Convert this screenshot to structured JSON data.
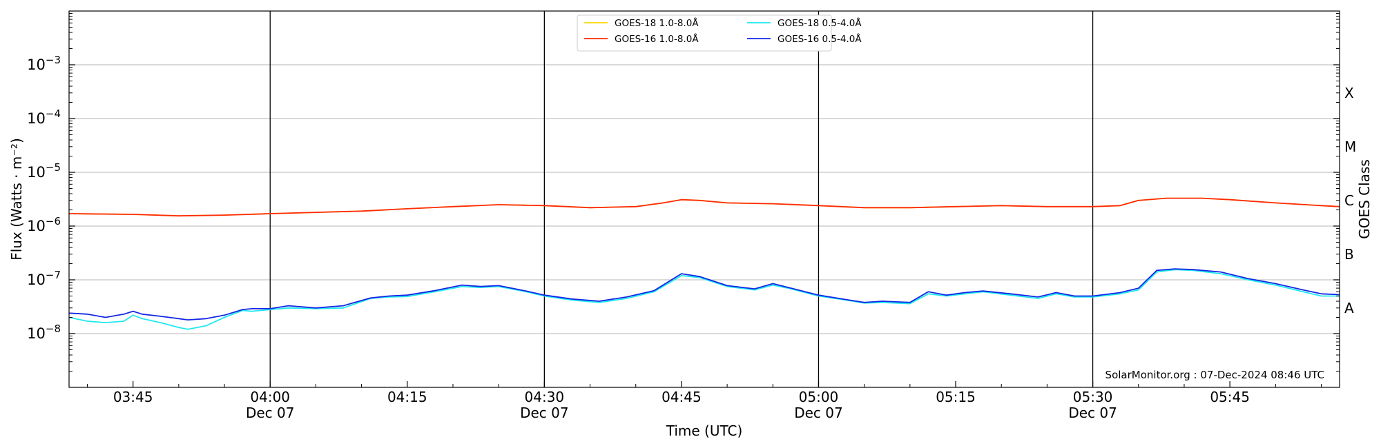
{
  "chart_data": {
    "type": "line",
    "xlabel": "Time (UTC)",
    "ylabel": "Flux (Watts · m⁻²)",
    "ylabel_right": "GOES Class",
    "ylim": [
      1e-09,
      0.01
    ],
    "yscale": "log",
    "xlim": [
      "03:38",
      "05:57"
    ],
    "grid": "horizontal",
    "legend_position": "top-center",
    "credit": "SolarMonitor.org : 07-Dec-2024 08:46 UTC",
    "y_ticks": [
      {
        "value": 1e-08,
        "base": "10",
        "exp": "−8"
      },
      {
        "value": 1e-07,
        "base": "10",
        "exp": "−7"
      },
      {
        "value": 1e-06,
        "base": "10",
        "exp": "−6"
      },
      {
        "value": 1e-05,
        "base": "10",
        "exp": "−5"
      },
      {
        "value": 0.0001,
        "base": "10",
        "exp": "−4"
      },
      {
        "value": 0.001,
        "base": "10",
        "exp": "−3"
      }
    ],
    "x_ticks": [
      {
        "time": "03:45",
        "label": "03:45",
        "sub": ""
      },
      {
        "time": "04:00",
        "label": "04:00",
        "sub": "Dec 07"
      },
      {
        "time": "04:15",
        "label": "04:15",
        "sub": ""
      },
      {
        "time": "04:30",
        "label": "04:30",
        "sub": "Dec 07"
      },
      {
        "time": "04:45",
        "label": "04:45",
        "sub": ""
      },
      {
        "time": "05:00",
        "label": "05:00",
        "sub": "Dec 07"
      },
      {
        "time": "05:15",
        "label": "05:15",
        "sub": ""
      },
      {
        "time": "05:30",
        "label": "05:30",
        "sub": "Dec 07"
      },
      {
        "time": "05:45",
        "label": "05:45",
        "sub": ""
      }
    ],
    "vlines": [
      "04:00",
      "04:30",
      "05:00",
      "05:30"
    ],
    "classes": [
      {
        "label": "A",
        "value": 3e-08
      },
      {
        "label": "B",
        "value": 3e-07
      },
      {
        "label": "C",
        "value": 3e-06
      },
      {
        "label": "M",
        "value": 3e-05
      },
      {
        "label": "X",
        "value": 0.0003
      }
    ],
    "series": [
      {
        "name": "GOES-18 1.0-8.0Å",
        "color": "#ffd700",
        "x": [
          "03:38",
          "03:45",
          "03:50",
          "03:55",
          "04:00",
          "04:05",
          "04:10",
          "04:15",
          "04:20",
          "04:25",
          "04:30",
          "04:35",
          "04:40",
          "04:43",
          "04:45",
          "04:47",
          "04:50",
          "04:55",
          "05:00",
          "05:05",
          "05:10",
          "05:15",
          "05:20",
          "05:25",
          "05:30",
          "05:33",
          "05:35",
          "05:38",
          "05:42",
          "05:45",
          "05:50",
          "05:55",
          "05:57"
        ],
        "values": [
          1.7e-06,
          1.65e-06,
          1.55e-06,
          1.6e-06,
          1.7e-06,
          1.8e-06,
          1.9e-06,
          2.1e-06,
          2.3e-06,
          2.5e-06,
          2.4e-06,
          2.2e-06,
          2.3e-06,
          2.7e-06,
          3.1e-06,
          3e-06,
          2.7e-06,
          2.6e-06,
          2.4e-06,
          2.2e-06,
          2.2e-06,
          2.3e-06,
          2.4e-06,
          2.3e-06,
          2.3e-06,
          2.4e-06,
          3e-06,
          3.3e-06,
          3.3e-06,
          3.1e-06,
          2.7e-06,
          2.4e-06,
          2.3e-06
        ]
      },
      {
        "name": "GOES-16 1.0-8.0Å",
        "color": "#ff2a0a",
        "x": [
          "03:38",
          "03:45",
          "03:50",
          "03:55",
          "04:00",
          "04:05",
          "04:10",
          "04:15",
          "04:20",
          "04:25",
          "04:30",
          "04:35",
          "04:40",
          "04:43",
          "04:45",
          "04:47",
          "04:50",
          "04:55",
          "05:00",
          "05:05",
          "05:10",
          "05:15",
          "05:20",
          "05:25",
          "05:30",
          "05:33",
          "05:35",
          "05:38",
          "05:42",
          "05:45",
          "05:50",
          "05:55",
          "05:57"
        ],
        "values": [
          1.7e-06,
          1.65e-06,
          1.55e-06,
          1.6e-06,
          1.7e-06,
          1.8e-06,
          1.9e-06,
          2.1e-06,
          2.3e-06,
          2.5e-06,
          2.4e-06,
          2.2e-06,
          2.3e-06,
          2.7e-06,
          3.1e-06,
          3e-06,
          2.7e-06,
          2.6e-06,
          2.4e-06,
          2.2e-06,
          2.2e-06,
          2.3e-06,
          2.4e-06,
          2.3e-06,
          2.3e-06,
          2.4e-06,
          3e-06,
          3.3e-06,
          3.3e-06,
          3.1e-06,
          2.7e-06,
          2.4e-06,
          2.3e-06
        ]
      },
      {
        "name": "GOES-18 0.5-4.0Å",
        "color": "#1ee8ee",
        "x": [
          "03:38",
          "03:40",
          "03:42",
          "03:44",
          "03:45",
          "03:46",
          "03:48",
          "03:50",
          "03:51",
          "03:53",
          "03:55",
          "03:57",
          "03:58",
          "04:00",
          "04:02",
          "04:05",
          "04:08",
          "04:11",
          "04:13",
          "04:15",
          "04:18",
          "04:21",
          "04:23",
          "04:25",
          "04:28",
          "04:30",
          "04:33",
          "04:36",
          "04:39",
          "04:42",
          "04:45",
          "04:47",
          "04:50",
          "04:53",
          "04:55",
          "04:57",
          "05:00",
          "05:03",
          "05:05",
          "05:07",
          "05:10",
          "05:12",
          "05:14",
          "05:16",
          "05:18",
          "05:21",
          "05:24",
          "05:26",
          "05:28",
          "05:30",
          "05:33",
          "05:35",
          "05:37",
          "05:39",
          "05:41",
          "05:44",
          "05:47",
          "05:50",
          "05:53",
          "05:55",
          "05:57"
        ],
        "values": [
          2e-08,
          1.7e-08,
          1.6e-08,
          1.7e-08,
          2.2e-08,
          1.9e-08,
          1.6e-08,
          1.3e-08,
          1.2e-08,
          1.4e-08,
          2e-08,
          2.7e-08,
          2.6e-08,
          2.8e-08,
          3e-08,
          2.9e-08,
          3e-08,
          4.5e-08,
          4.8e-08,
          4.9e-08,
          6e-08,
          7.5e-08,
          7.2e-08,
          7.5e-08,
          6e-08,
          5e-08,
          4.2e-08,
          3.8e-08,
          4.5e-08,
          6e-08,
          1.2e-07,
          1.1e-07,
          7.5e-08,
          6.5e-08,
          8e-08,
          6.8e-08,
          5e-08,
          4.2e-08,
          3.7e-08,
          3.8e-08,
          3.6e-08,
          5.5e-08,
          5e-08,
          5.5e-08,
          6e-08,
          5.2e-08,
          4.5e-08,
          5.5e-08,
          4.8e-08,
          4.8e-08,
          5.5e-08,
          6.5e-08,
          1.4e-07,
          1.55e-07,
          1.5e-07,
          1.3e-07,
          1e-07,
          8e-08,
          6e-08,
          5e-08,
          5e-08
        ]
      },
      {
        "name": "GOES-16 0.5-4.0Å",
        "color": "#1428e6",
        "x": [
          "03:38",
          "03:40",
          "03:42",
          "03:44",
          "03:45",
          "03:46",
          "03:48",
          "03:50",
          "03:51",
          "03:53",
          "03:55",
          "03:57",
          "03:58",
          "04:00",
          "04:02",
          "04:05",
          "04:08",
          "04:11",
          "04:13",
          "04:15",
          "04:18",
          "04:21",
          "04:23",
          "04:25",
          "04:28",
          "04:30",
          "04:33",
          "04:36",
          "04:39",
          "04:42",
          "04:45",
          "04:47",
          "04:50",
          "04:53",
          "04:55",
          "04:57",
          "05:00",
          "05:03",
          "05:05",
          "05:07",
          "05:10",
          "05:12",
          "05:14",
          "05:16",
          "05:18",
          "05:21",
          "05:24",
          "05:26",
          "05:28",
          "05:30",
          "05:33",
          "05:35",
          "05:37",
          "05:39",
          "05:41",
          "05:44",
          "05:47",
          "05:50",
          "05:53",
          "05:55",
          "05:57"
        ],
        "values": [
          2.4e-08,
          2.3e-08,
          2e-08,
          2.3e-08,
          2.6e-08,
          2.3e-08,
          2.1e-08,
          1.9e-08,
          1.8e-08,
          1.9e-08,
          2.2e-08,
          2.8e-08,
          2.9e-08,
          2.9e-08,
          3.3e-08,
          3e-08,
          3.3e-08,
          4.6e-08,
          5e-08,
          5.2e-08,
          6.3e-08,
          8e-08,
          7.5e-08,
          7.8e-08,
          6.2e-08,
          5.2e-08,
          4.4e-08,
          4e-08,
          4.8e-08,
          6.3e-08,
          1.3e-07,
          1.15e-07,
          7.8e-08,
          6.8e-08,
          8.5e-08,
          7e-08,
          5.2e-08,
          4.3e-08,
          3.8e-08,
          4e-08,
          3.8e-08,
          6e-08,
          5.2e-08,
          5.8e-08,
          6.2e-08,
          5.5e-08,
          4.8e-08,
          5.8e-08,
          5e-08,
          5e-08,
          5.8e-08,
          7e-08,
          1.5e-07,
          1.6e-07,
          1.55e-07,
          1.4e-07,
          1.05e-07,
          8.5e-08,
          6.5e-08,
          5.5e-08,
          5.3e-08
        ]
      }
    ]
  }
}
